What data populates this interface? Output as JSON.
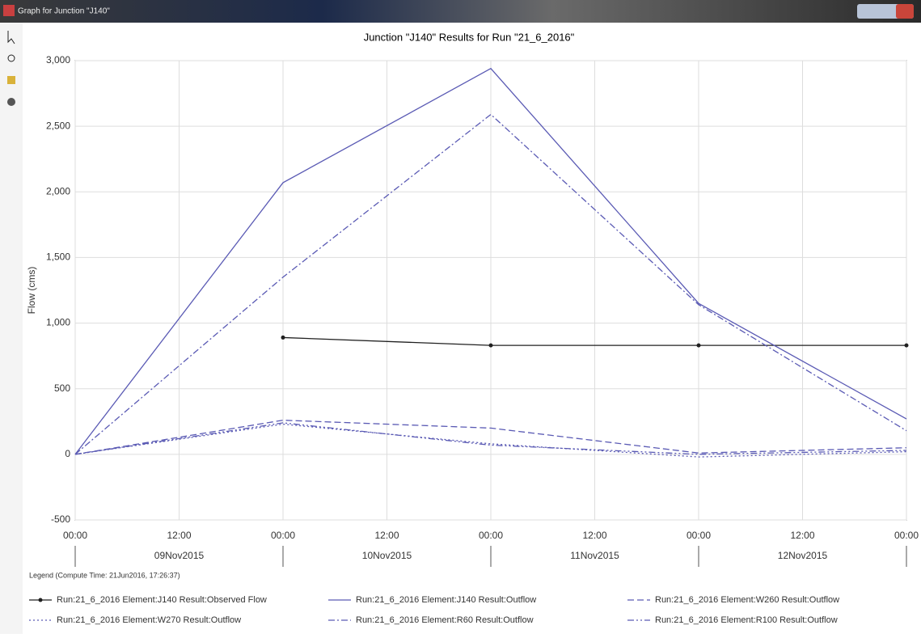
{
  "window": {
    "title": "Graph for Junction \"J140\""
  },
  "chart_data": {
    "type": "line",
    "title": "Junction \"J140\" Results for Run \"21_6_2016\"",
    "y_label": "Flow (cms)",
    "x": [
      0,
      24,
      48,
      72,
      96
    ],
    "xlim": [
      0,
      96
    ],
    "xticks": [
      {
        "value": 0,
        "label": "00:00"
      },
      {
        "value": 12,
        "label": "12:00"
      },
      {
        "value": 24,
        "label": "00:00"
      },
      {
        "value": 36,
        "label": "12:00"
      },
      {
        "value": 48,
        "label": "00:00"
      },
      {
        "value": 60,
        "label": "12:00"
      },
      {
        "value": 72,
        "label": "00:00"
      },
      {
        "value": 84,
        "label": "12:00"
      },
      {
        "value": 96,
        "label": "00:00"
      }
    ],
    "date_labels": [
      "09Nov2015",
      "10Nov2015",
      "11Nov2015",
      "12Nov2015"
    ],
    "ylim": [
      -500,
      3000
    ],
    "yticks": [
      -500,
      0,
      500,
      {
        "value": 1000,
        "label": "1,000"
      },
      {
        "value": 1500,
        "label": "1,500"
      },
      {
        "value": 2000,
        "label": "2,000"
      },
      {
        "value": 2500,
        "label": "2,500"
      },
      {
        "value": 3000,
        "label": "3,000"
      }
    ],
    "grid": true,
    "legend_title": "Legend (Compute Time: 21Jun2016, 17:26:37)",
    "series": [
      {
        "name": "Run:21_6_2016 Element:J140 Result:Observed Flow",
        "color": "#202020",
        "style": "solid",
        "marker": "circle",
        "values": [
          null,
          890,
          830,
          830,
          830
        ]
      },
      {
        "name": "Run:21_6_2016 Element:J140 Result:Outflow",
        "color": "#5a5ab4",
        "style": "solid",
        "values": [
          0,
          2070,
          2940,
          1150,
          270
        ]
      },
      {
        "name": "Run:21_6_2016 Element:W260 Result:Outflow",
        "color": "#5a5ab4",
        "style": "dashed",
        "values": [
          0,
          260,
          200,
          10,
          50
        ]
      },
      {
        "name": "Run:21_6_2016 Element:W270 Result:Outflow",
        "color": "#5a5ab4",
        "style": "dotted",
        "values": [
          0,
          230,
          80,
          -20,
          20
        ]
      },
      {
        "name": "Run:21_6_2016 Element:R60 Result:Outflow",
        "color": "#5a5ab4",
        "style": "dashdot",
        "values": [
          0,
          1350,
          2590,
          1140,
          180
        ]
      },
      {
        "name": "Run:21_6_2016 Element:R100 Result:Outflow",
        "color": "#5a5ab4",
        "style": "dashdotdot",
        "values": [
          0,
          240,
          70,
          0,
          30
        ]
      }
    ]
  }
}
